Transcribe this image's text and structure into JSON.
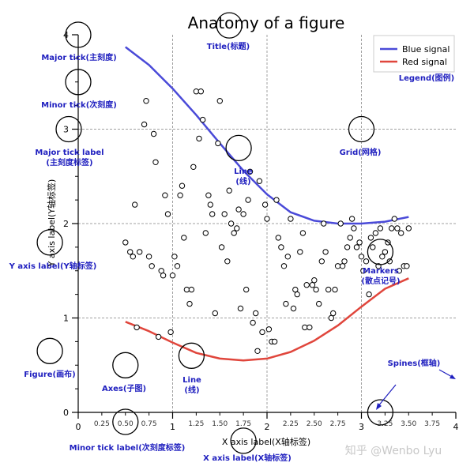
{
  "chart_data": {
    "type": "line",
    "title": "Anatomy of a figure",
    "xlabel": "X axis label(X轴标签)",
    "ylabel": "Y axis label(Y轴标签)",
    "xlim": [
      0,
      4
    ],
    "ylim": [
      0,
      4
    ],
    "grid": true,
    "legend_position": "top-right",
    "x_major_ticks": [
      "0",
      "1",
      "2",
      "3",
      "4"
    ],
    "x_minor_ticks": [
      "0.25",
      "0.50",
      "0.75",
      "1.25",
      "1.50",
      "1.75",
      "2.25",
      "2.50",
      "2.75",
      "3.25",
      "3.50",
      "3.75"
    ],
    "y_major_ticks": [
      "0",
      "1",
      "2",
      "3",
      "4"
    ],
    "series": [
      {
        "name": "Blue signal",
        "color": "#4a4ad8",
        "x": [
          0.5,
          0.75,
          1.0,
          1.25,
          1.5,
          1.75,
          2.0,
          2.25,
          2.5,
          2.75,
          3.0,
          3.25,
          3.5
        ],
        "y": [
          3.87,
          3.68,
          3.43,
          3.15,
          2.85,
          2.56,
          2.31,
          2.12,
          2.03,
          2.0,
          2.0,
          2.02,
          2.07
        ]
      },
      {
        "name": "Red signal",
        "color": "#e0463c",
        "x": [
          0.5,
          0.75,
          1.0,
          1.25,
          1.5,
          1.75,
          2.0,
          2.25,
          2.5,
          2.75,
          3.0,
          3.25,
          3.5
        ],
        "y": [
          0.96,
          0.86,
          0.74,
          0.63,
          0.57,
          0.55,
          0.57,
          0.64,
          0.76,
          0.92,
          1.12,
          1.31,
          1.42
        ]
      }
    ],
    "markers": {
      "name": "Markers",
      "x": [
        0.5,
        0.55,
        0.58,
        0.6,
        0.62,
        0.65,
        0.7,
        0.72,
        0.75,
        0.78,
        0.8,
        0.82,
        0.85,
        0.88,
        0.9,
        0.92,
        0.95,
        0.98,
        1.0,
        1.02,
        1.05,
        1.08,
        1.1,
        1.12,
        1.15,
        1.18,
        1.2,
        1.22,
        1.25,
        1.28,
        1.3,
        1.32,
        1.35,
        1.38,
        1.4,
        1.42,
        1.45,
        1.48,
        1.5,
        1.52,
        1.55,
        1.58,
        1.6,
        1.62,
        1.65,
        1.68,
        1.7,
        1.72,
        1.75,
        1.78,
        1.8,
        1.82,
        1.85,
        1.88,
        1.9,
        1.92,
        1.95,
        1.98,
        2.0,
        2.02,
        2.05,
        2.08,
        2.1,
        2.12,
        2.15,
        2.18,
        2.2,
        2.22,
        2.25,
        2.28,
        2.3,
        2.32,
        2.35,
        2.38,
        2.4,
        2.42,
        2.45,
        2.48,
        2.5,
        2.52,
        2.55,
        2.58,
        2.6,
        2.62,
        2.65,
        2.68,
        2.7,
        2.72,
        2.75,
        2.78,
        2.8,
        2.82,
        2.85,
        2.88,
        2.9,
        2.92,
        2.95,
        2.98,
        3.0,
        3.02,
        3.05,
        3.08,
        3.1,
        3.12,
        3.15,
        3.18,
        3.2,
        3.22,
        3.25,
        3.28,
        3.3,
        3.32,
        3.35,
        3.38,
        3.4,
        3.42,
        3.45,
        3.48,
        3.5
      ],
      "y": [
        1.8,
        1.7,
        1.65,
        2.2,
        0.9,
        1.7,
        3.05,
        3.3,
        1.65,
        1.55,
        2.95,
        2.65,
        0.8,
        1.5,
        1.45,
        2.3,
        2.1,
        0.85,
        1.45,
        1.65,
        1.55,
        2.3,
        2.4,
        1.85,
        1.3,
        1.15,
        1.3,
        2.6,
        3.4,
        2.9,
        3.4,
        3.1,
        1.9,
        2.3,
        2.2,
        2.1,
        1.05,
        2.85,
        3.3,
        1.75,
        2.1,
        1.6,
        2.35,
        2.0,
        1.9,
        1.95,
        2.15,
        1.1,
        2.1,
        1.3,
        2.25,
        2.55,
        0.95,
        1.05,
        0.65,
        2.45,
        0.85,
        2.2,
        2.05,
        0.88,
        0.75,
        0.75,
        2.25,
        1.85,
        1.75,
        1.55,
        1.15,
        1.65,
        2.05,
        1.1,
        1.3,
        1.25,
        1.7,
        1.9,
        0.9,
        1.35,
        0.9,
        1.35,
        1.4,
        1.3,
        1.15,
        1.6,
        2.0,
        1.7,
        1.3,
        1.0,
        1.05,
        1.3,
        1.55,
        2.0,
        1.55,
        1.6,
        1.75,
        1.85,
        2.05,
        1.95,
        1.75,
        1.8,
        1.65,
        1.5,
        1.6,
        1.25,
        1.85,
        1.75,
        1.9,
        1.55,
        1.95,
        1.65,
        1.7,
        1.8,
        1.6,
        1.95,
        2.05,
        1.95,
        1.5,
        1.9,
        1.55,
        1.55,
        1.95
      ]
    },
    "annotations": [
      {
        "id": "major-tick",
        "text": "Major tick(主刻度)",
        "target": [
          0.0,
          4.0
        ]
      },
      {
        "id": "minor-tick",
        "text": "Minor tick(次刻度)",
        "target": [
          0.0,
          3.5
        ]
      },
      {
        "id": "major-tick-label",
        "text": "Major tick label\n(主刻度标签)",
        "target": [
          -0.1,
          3.0
        ]
      },
      {
        "id": "y-axis-label",
        "text": "Y axis label(Y轴标签)",
        "target": [
          -0.3,
          1.8
        ]
      },
      {
        "id": "figure",
        "text": "Figure(画布)",
        "target": [
          -0.3,
          0.65
        ]
      },
      {
        "id": "axes",
        "text": "Axes(子图)",
        "target": [
          0.5,
          0.5
        ]
      },
      {
        "id": "line-bottom",
        "text": "Line\n(线)",
        "target": [
          1.2,
          0.6
        ]
      },
      {
        "id": "title",
        "text": "Title(标题)",
        "target": [
          1.6,
          4.1
        ]
      },
      {
        "id": "line-top",
        "text": "Line\n(线)",
        "target": [
          1.7,
          2.8
        ]
      },
      {
        "id": "grid",
        "text": "Grid(网格)",
        "target": [
          3.0,
          3.0
        ]
      },
      {
        "id": "legend",
        "text": "Legend(图例)",
        "target": [
          3.7,
          3.85
        ]
      },
      {
        "id": "markers",
        "text": "Markers\n(散点记号)",
        "target": [
          3.2,
          1.7
        ]
      },
      {
        "id": "spines",
        "text": "Spines(框轴)",
        "target": [
          3.2,
          0.0
        ]
      },
      {
        "id": "minor-tick-label",
        "text": "Minor tick label(次刻度标签)",
        "target": [
          0.5,
          -0.1
        ]
      },
      {
        "id": "x-axis-label",
        "text": "X axis label(X轴标签)",
        "target": [
          1.75,
          -0.3
        ]
      }
    ]
  },
  "watermark": "知乎 @Wenbo Lyu",
  "colors": {
    "annotation_text": "#1f1fbf",
    "grid": "#a0a0a0",
    "blue_signal": "#4a4ad8",
    "red_signal": "#e0463c"
  }
}
